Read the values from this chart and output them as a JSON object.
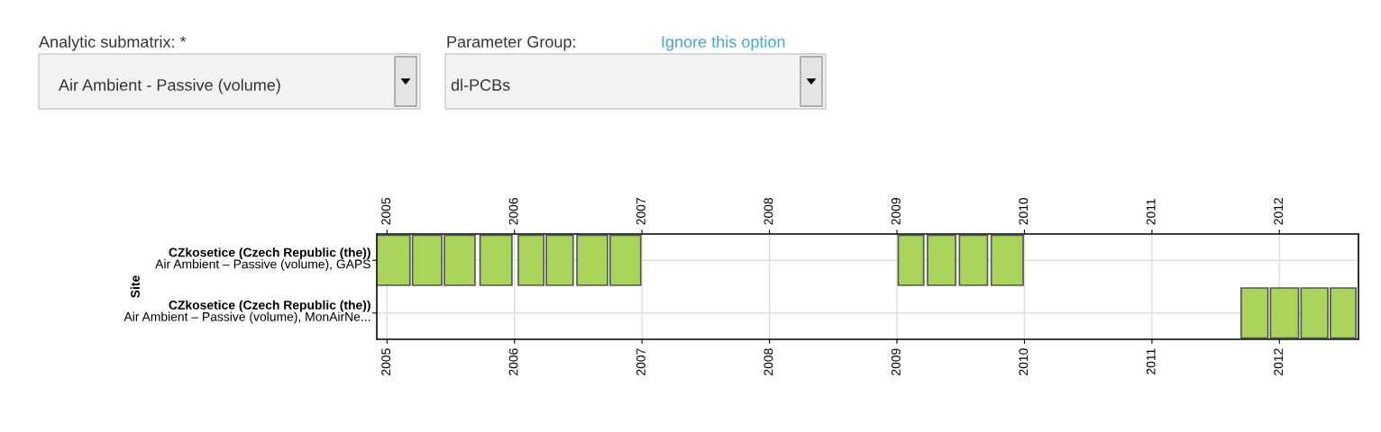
{
  "chart_data": {
    "type": "bar",
    "orientation": "horizontal",
    "ylabel": "Site",
    "categories": [
      "CZkosetice (Czech Republic (the))\nAir Ambient – Passive (volume), GAPS",
      "CZkosetice (Czech Republic (the))\nAir Ambient – Passive (volume), MonAirNe..."
    ],
    "series": [
      {
        "color": "#a9d45a",
        "base": [
          2004.92,
          2011.7
        ],
        "values": [
          0.26,
          0.21
        ]
      },
      {
        "color": "#a9d45a",
        "base": [
          2005.2,
          2011.93
        ],
        "values": [
          0.23,
          0.22
        ]
      },
      {
        "color": "#a9d45a",
        "base": [
          2005.45,
          2012.17
        ],
        "values": [
          0.24,
          0.21
        ]
      },
      {
        "color": "#a9d45a",
        "base": [
          2005.73,
          2012.4
        ],
        "values": [
          0.25,
          0.2
        ]
      },
      {
        "color": "#a9d45a",
        "base": [
          2006.03,
          null
        ],
        "values": [
          0.2,
          null
        ]
      },
      {
        "color": "#a9d45a",
        "base": [
          2006.25,
          null
        ],
        "values": [
          0.21,
          null
        ]
      },
      {
        "color": "#a9d45a",
        "base": [
          2006.49,
          null
        ],
        "values": [
          0.24,
          null
        ]
      },
      {
        "color": "#a9d45a",
        "base": [
          2006.75,
          null
        ],
        "values": [
          0.24,
          null
        ]
      },
      {
        "color": "#a9d45a",
        "base": [
          2009.01,
          null
        ],
        "values": [
          0.2,
          null
        ]
      },
      {
        "color": "#a9d45a",
        "base": [
          2009.24,
          null
        ],
        "values": [
          0.22,
          null
        ]
      },
      {
        "color": "#a9d45a",
        "base": [
          2009.49,
          null
        ],
        "values": [
          0.22,
          null
        ]
      },
      {
        "color": "#a9d45a",
        "base": [
          2009.74,
          null
        ],
        "values": [
          0.25,
          null
        ]
      }
    ],
    "xlim": [
      2004.92,
      2012.62
    ],
    "xticks": [
      2005,
      2006,
      2007,
      2008,
      2009,
      2010,
      2011,
      2012
    ],
    "x2lim": [
      2004.92,
      2012.62
    ],
    "x2ticks": [
      2005,
      2006,
      2007,
      2008,
      2009,
      2010,
      2011,
      2012
    ],
    "grid": true,
    "annotations": [
      "Analytic submatrix: *",
      "Air Ambient - Passive (volume)",
      "Parameter Group:",
      "dl-PCBs",
      "Ignore this option"
    ]
  }
}
